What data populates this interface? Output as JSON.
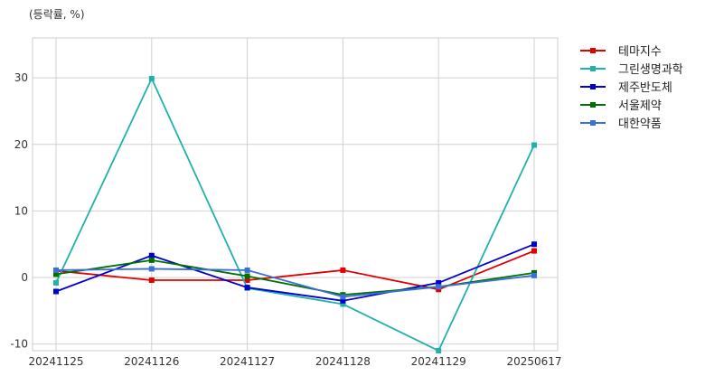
{
  "chart_data": {
    "type": "line",
    "unit_label": "(등락률, %)",
    "title": "",
    "xlabel": "",
    "ylabel": "",
    "categories": [
      "20241125",
      "20241126",
      "20241127",
      "20241128",
      "20241129",
      "20250617"
    ],
    "ylim": [
      -11,
      36
    ],
    "yticks": [
      -10,
      0,
      10,
      20,
      30
    ],
    "grid": true,
    "legend_position": "right",
    "series": [
      {
        "name": "테마지수",
        "color": "#e00000",
        "values": [
          1.0,
          -0.4,
          -0.4,
          1.1,
          -1.8,
          4.0
        ]
      },
      {
        "name": "그린생명과학",
        "color": "#20b2aa",
        "values": [
          -0.8,
          29.9,
          -1.6,
          -4.0,
          -11.0,
          19.9
        ]
      },
      {
        "name": "제주반도체",
        "color": "#0000cc",
        "values": [
          -2.1,
          3.3,
          -1.5,
          -3.5,
          -0.8,
          5.0
        ]
      },
      {
        "name": "서울제약",
        "color": "#007000",
        "values": [
          0.5,
          2.6,
          0.2,
          -2.6,
          -1.4,
          0.7
        ]
      },
      {
        "name": "대한약품",
        "color": "#3a6fd8",
        "values": [
          1.1,
          1.3,
          1.1,
          -2.9,
          -1.4,
          0.3
        ]
      }
    ]
  }
}
